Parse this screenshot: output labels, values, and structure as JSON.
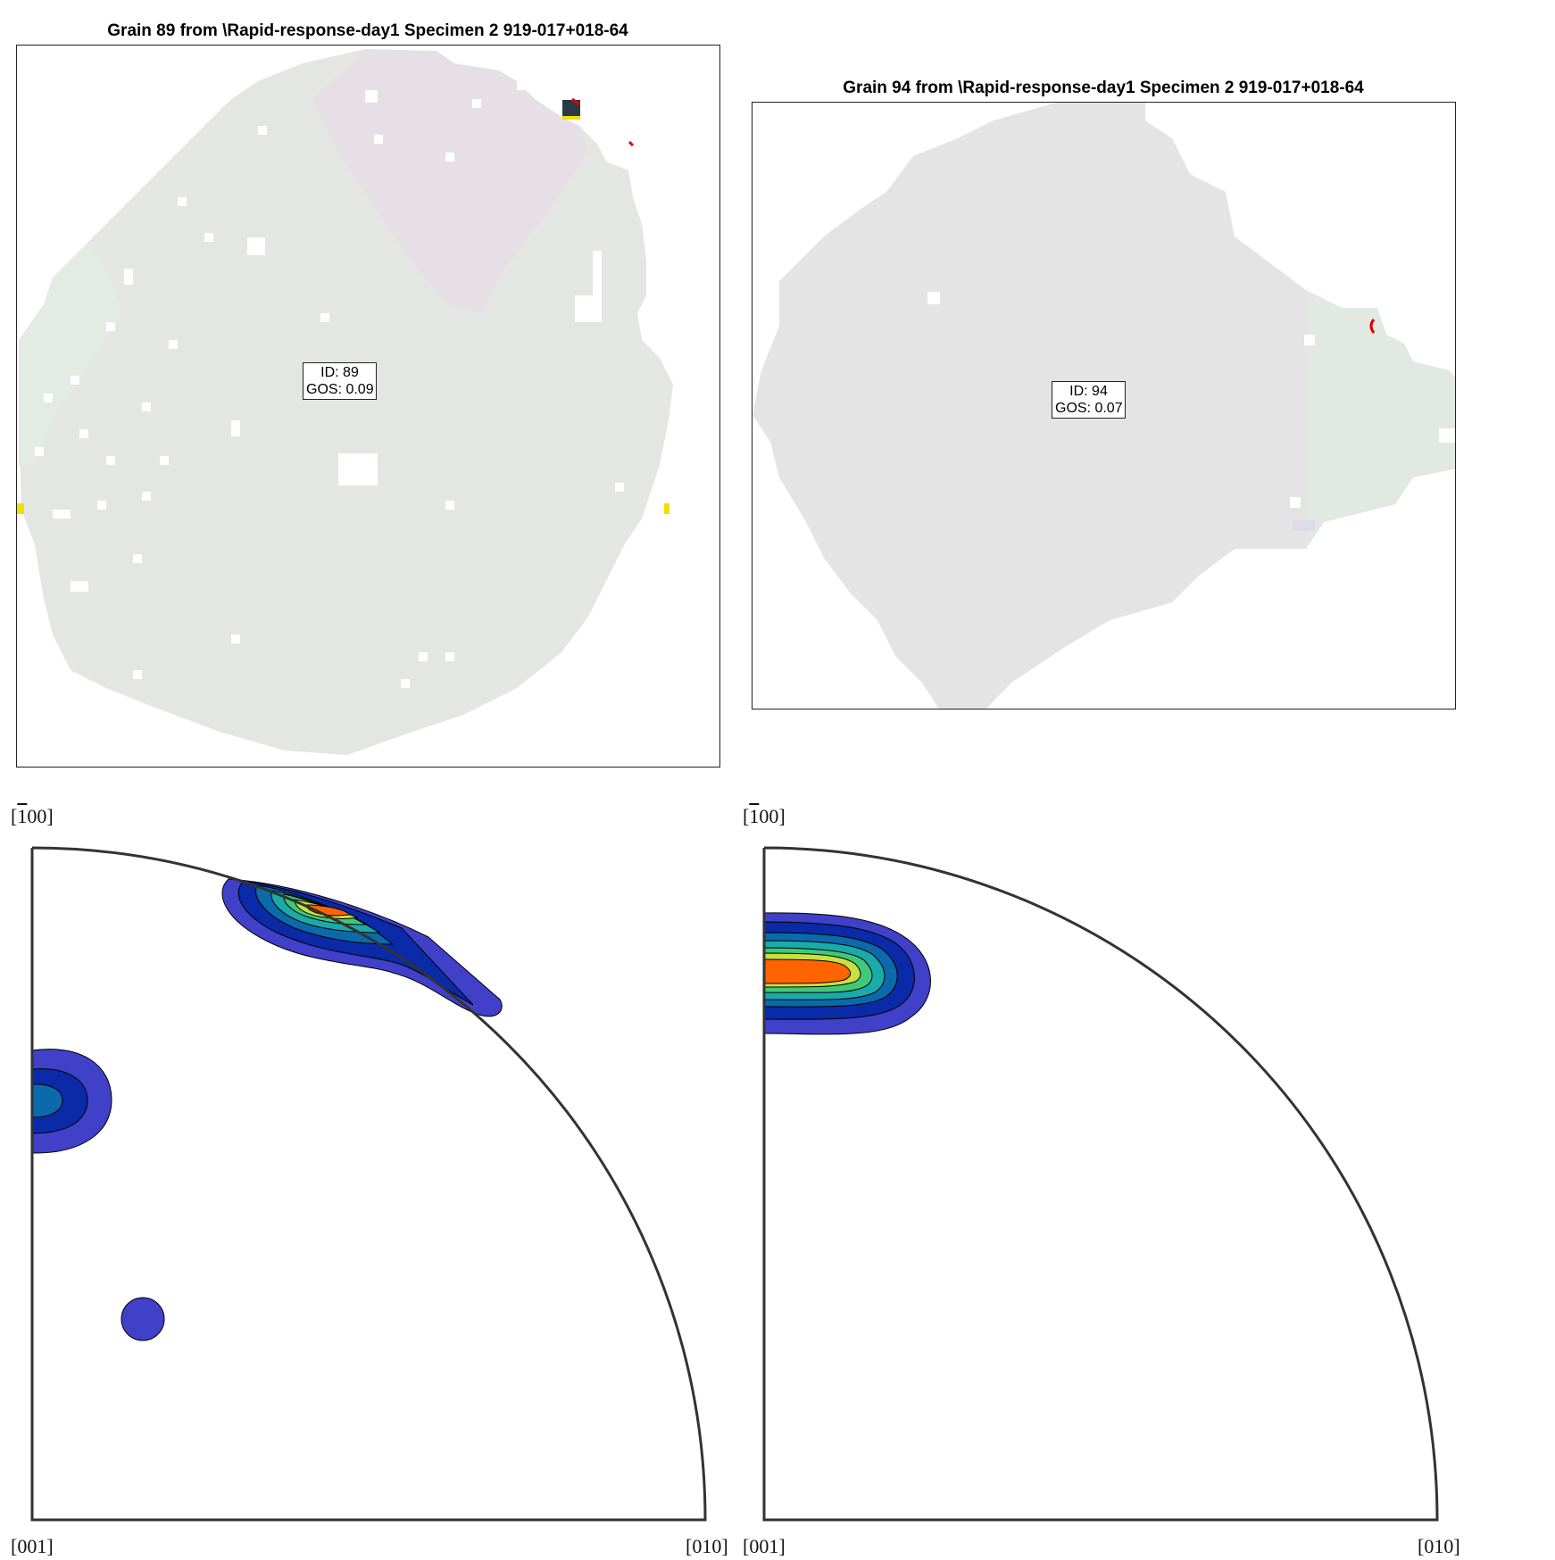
{
  "panels": [
    {
      "title": "Grain 89 from \\Rapid-response-day1 Specimen 2 919-017+018-64",
      "label_id": "ID: 89",
      "label_gos": "GOS: 0.09"
    },
    {
      "title": "Grain 94 from \\Rapid-response-day1 Specimen 2 919-017+018-64",
      "label_id": "ID: 94",
      "label_gos": "GOS: 0.07"
    }
  ],
  "pole_figures": [
    {
      "top_label_bar": "1",
      "top_label_rest": "00",
      "bottom_left": "[001]",
      "bottom_right": "[010]"
    },
    {
      "top_label_bar": "1",
      "top_label_rest": "00",
      "bottom_left": "[001]",
      "bottom_right": "[010]"
    }
  ],
  "colors": {
    "grain_fill": "#e6e6e6",
    "contour_levels": [
      "#4040c8",
      "#0a2aa8",
      "#0a6aaa",
      "#1aaaaa",
      "#40c878",
      "#c8e040",
      "#ff6400"
    ]
  }
}
